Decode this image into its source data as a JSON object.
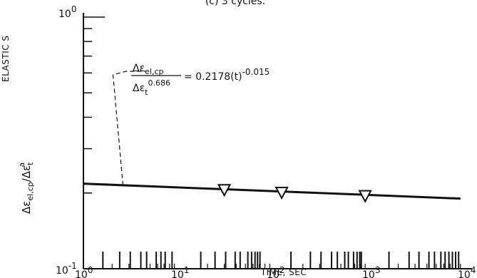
{
  "chart_data": {
    "type": "scatter",
    "title": "(c) 3 cycles.",
    "left_edge_label": "ELASTIC S",
    "xlabel": "TIME, SEC",
    "ylabel": {
      "base": "Δε",
      "sub": "el,cp",
      "divider": "/Δε",
      "sub2": "t",
      "sup2": "a"
    },
    "x_scale": "log",
    "y_scale": "log",
    "xlim": [
      1,
      10000
    ],
    "ylim": [
      0.1,
      1
    ],
    "x_ticks": [
      {
        "base": "10",
        "exp": "0"
      },
      {
        "base": "10",
        "exp": "1"
      },
      {
        "base": "10",
        "exp": "2"
      },
      {
        "base": "10",
        "exp": "3"
      },
      {
        "base": "10",
        "exp": "4"
      }
    ],
    "y_ticks": [
      {
        "base": "10",
        "exp": "0"
      },
      {
        "base": "10",
        "exp": "-1"
      }
    ],
    "series": [
      {
        "marker": "inverted-triangle",
        "x": [
          30,
          120,
          900
        ],
        "y": [
          0.206,
          0.201,
          0.195
        ]
      }
    ],
    "fit": {
      "coefficient": 0.2178,
      "exponent": -0.015,
      "x_range": [
        1,
        9000
      ],
      "equation": {
        "num_base": "Δε",
        "num_sub": "el,cp",
        "den_base": "Δε",
        "den_sub": "t",
        "den_sup": "0.686",
        "rhs": "= 0.2178(t)",
        "rhs_sup": "-0.015"
      }
    },
    "annotation_x": 2.6,
    "rug_x": [
      1.6,
      2.4,
      3.1,
      4.0,
      4.6,
      5.8,
      6.5,
      7.2,
      8.5,
      17,
      24,
      31,
      39,
      44,
      53,
      58,
      63,
      67,
      71,
      150,
      240,
      310,
      400,
      460,
      550,
      600,
      680,
      740,
      790,
      820,
      1600,
      2600,
      3300,
      4200,
      4800,
      5600,
      6200,
      6800,
      7400,
      8000,
      8600
    ]
  }
}
